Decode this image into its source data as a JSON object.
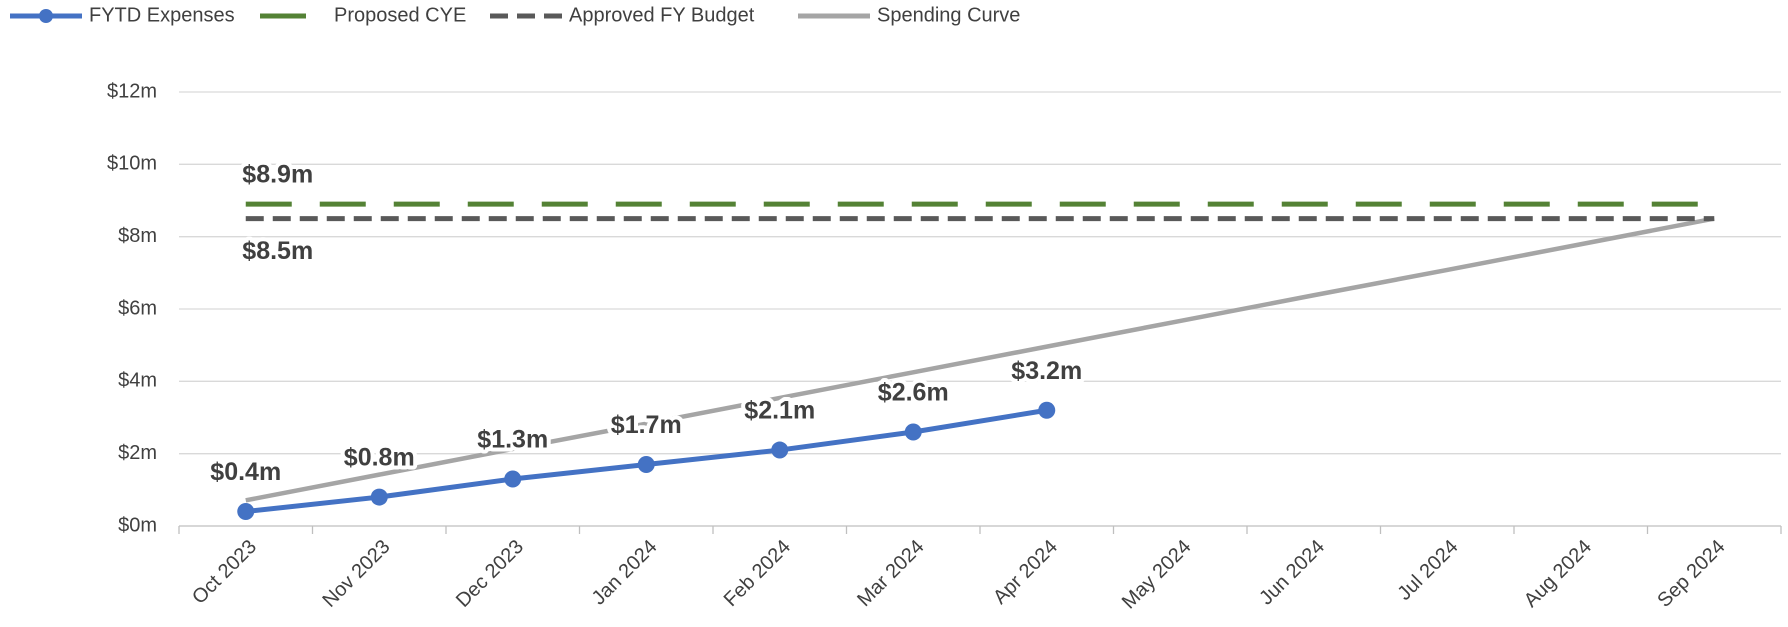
{
  "chart_data": {
    "type": "line",
    "categories": [
      "Oct 2023",
      "Nov 2023",
      "Dec 2023",
      "Jan 2024",
      "Feb 2024",
      "Mar 2024",
      "Apr 2024",
      "May 2024",
      "Jun 2024",
      "Jul 2024",
      "Aug 2024",
      "Sep 2024"
    ],
    "series": [
      {
        "name": "FYTD Expenses",
        "color": "#4472c4",
        "style": "solid",
        "marker": true,
        "values": [
          0.4,
          0.8,
          1.3,
          1.7,
          2.1,
          2.6,
          3.2,
          null,
          null,
          null,
          null,
          null
        ],
        "value_labels": [
          "$0.4m",
          "$0.8m",
          "$1.3m",
          "$1.7m",
          "$2.1m",
          "$2.6m",
          "$3.2m",
          null,
          null,
          null,
          null,
          null
        ]
      },
      {
        "name": "Proposed CYE",
        "color": "#548235",
        "style": "long-dash",
        "marker": false,
        "values": [
          8.9,
          8.9,
          8.9,
          8.9,
          8.9,
          8.9,
          8.9,
          8.9,
          8.9,
          8.9,
          8.9,
          8.9
        ],
        "value_labels": [
          "$8.9m",
          null,
          null,
          null,
          null,
          null,
          null,
          null,
          null,
          null,
          null,
          null
        ]
      },
      {
        "name": "Approved FY Budget",
        "color": "#595959",
        "style": "short-dash",
        "marker": false,
        "values": [
          8.5,
          8.5,
          8.5,
          8.5,
          8.5,
          8.5,
          8.5,
          8.5,
          8.5,
          8.5,
          8.5,
          8.5
        ],
        "value_labels": [
          "$8.5m",
          null,
          null,
          null,
          null,
          null,
          null,
          null,
          null,
          null,
          null,
          null
        ]
      },
      {
        "name": "Spending Curve",
        "color": "#a5a5a5",
        "style": "solid",
        "marker": false,
        "values": [
          0.71,
          1.42,
          2.13,
          2.83,
          3.54,
          4.25,
          4.96,
          5.67,
          6.38,
          7.08,
          7.79,
          8.5
        ]
      }
    ],
    "ylim": [
      0,
      12
    ],
    "yticks": [
      {
        "value": 0,
        "label": "$0m"
      },
      {
        "value": 2,
        "label": "$2m"
      },
      {
        "value": 4,
        "label": "$4m"
      },
      {
        "value": 6,
        "label": "$6m"
      },
      {
        "value": 8,
        "label": "$8m"
      },
      {
        "value": 10,
        "label": "$10m"
      },
      {
        "value": 12,
        "label": "$12m"
      }
    ],
    "grid": true,
    "legend": "top-left"
  }
}
